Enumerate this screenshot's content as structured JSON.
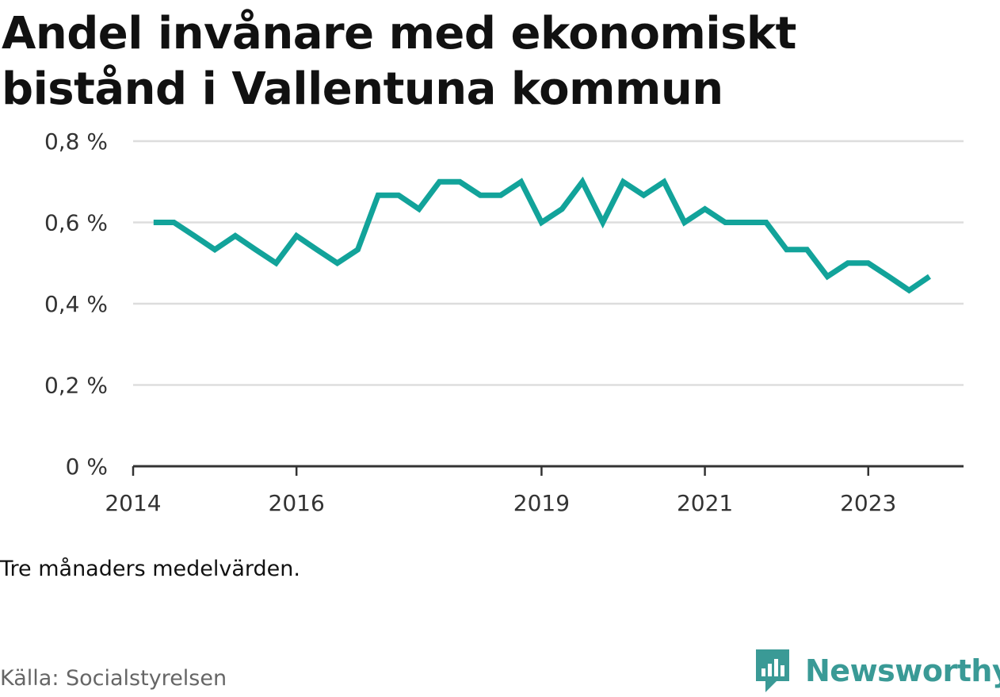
{
  "header": {
    "title": "Andel invånare med ekonomiskt bistånd i Vallentuna kommun"
  },
  "footer": {
    "note": "Tre månaders medelvärden.",
    "source": "Källa: Socialstyrelsen",
    "brand": "Newsworthy"
  },
  "colors": {
    "line": "#12a39a",
    "grid": "#dddddd",
    "axis": "#333333",
    "brand": "#3a9a96"
  },
  "chart_data": {
    "type": "line",
    "title": "Andel invånare med ekonomiskt bistånd i Vallentuna kommun",
    "xlabel": "",
    "ylabel": "",
    "ylim": [
      0,
      0.8
    ],
    "xlim": [
      "2014-01",
      "2024-03"
    ],
    "y_ticks": [
      {
        "value": 0,
        "label": "0 %"
      },
      {
        "value": 0.2,
        "label": "0,2 %"
      },
      {
        "value": 0.4,
        "label": "0,4 %"
      },
      {
        "value": 0.6,
        "label": "0,6 %"
      },
      {
        "value": 0.8,
        "label": "0,8 %"
      }
    ],
    "x_ticks": [
      {
        "value": "2014-01",
        "label": "2014"
      },
      {
        "value": "2016-01",
        "label": "2016"
      },
      {
        "value": "2019-01",
        "label": "2019"
      },
      {
        "value": "2021-01",
        "label": "2021"
      },
      {
        "value": "2023-01",
        "label": "2023"
      }
    ],
    "grid": true,
    "series": [
      {
        "values": [
          {
            "x": "2014-04",
            "y": 0.6
          },
          {
            "x": "2014-07",
            "y": 0.6
          },
          {
            "x": "2014-10",
            "y": 0.567
          },
          {
            "x": "2015-01",
            "y": 0.533
          },
          {
            "x": "2015-04",
            "y": 0.567
          },
          {
            "x": "2015-07",
            "y": 0.533
          },
          {
            "x": "2015-10",
            "y": 0.5
          },
          {
            "x": "2016-01",
            "y": 0.567
          },
          {
            "x": "2016-04",
            "y": 0.533
          },
          {
            "x": "2016-07",
            "y": 0.5
          },
          {
            "x": "2016-10",
            "y": 0.533
          },
          {
            "x": "2017-01",
            "y": 0.667
          },
          {
            "x": "2017-04",
            "y": 0.667
          },
          {
            "x": "2017-07",
            "y": 0.633
          },
          {
            "x": "2017-10",
            "y": 0.7
          },
          {
            "x": "2018-01",
            "y": 0.7
          },
          {
            "x": "2018-04",
            "y": 0.667
          },
          {
            "x": "2018-07",
            "y": 0.667
          },
          {
            "x": "2018-10",
            "y": 0.7
          },
          {
            "x": "2019-01",
            "y": 0.6
          },
          {
            "x": "2019-04",
            "y": 0.633
          },
          {
            "x": "2019-07",
            "y": 0.7
          },
          {
            "x": "2019-10",
            "y": 0.6
          },
          {
            "x": "2020-01",
            "y": 0.7
          },
          {
            "x": "2020-04",
            "y": 0.667
          },
          {
            "x": "2020-07",
            "y": 0.7
          },
          {
            "x": "2020-10",
            "y": 0.6
          },
          {
            "x": "2021-01",
            "y": 0.633
          },
          {
            "x": "2021-04",
            "y": 0.6
          },
          {
            "x": "2021-07",
            "y": 0.6
          },
          {
            "x": "2021-10",
            "y": 0.6
          },
          {
            "x": "2022-01",
            "y": 0.533
          },
          {
            "x": "2022-04",
            "y": 0.533
          },
          {
            "x": "2022-07",
            "y": 0.467
          },
          {
            "x": "2022-10",
            "y": 0.5
          },
          {
            "x": "2023-01",
            "y": 0.5
          },
          {
            "x": "2023-04",
            "y": 0.467
          },
          {
            "x": "2023-07",
            "y": 0.433
          },
          {
            "x": "2023-10",
            "y": 0.467
          }
        ]
      }
    ]
  }
}
